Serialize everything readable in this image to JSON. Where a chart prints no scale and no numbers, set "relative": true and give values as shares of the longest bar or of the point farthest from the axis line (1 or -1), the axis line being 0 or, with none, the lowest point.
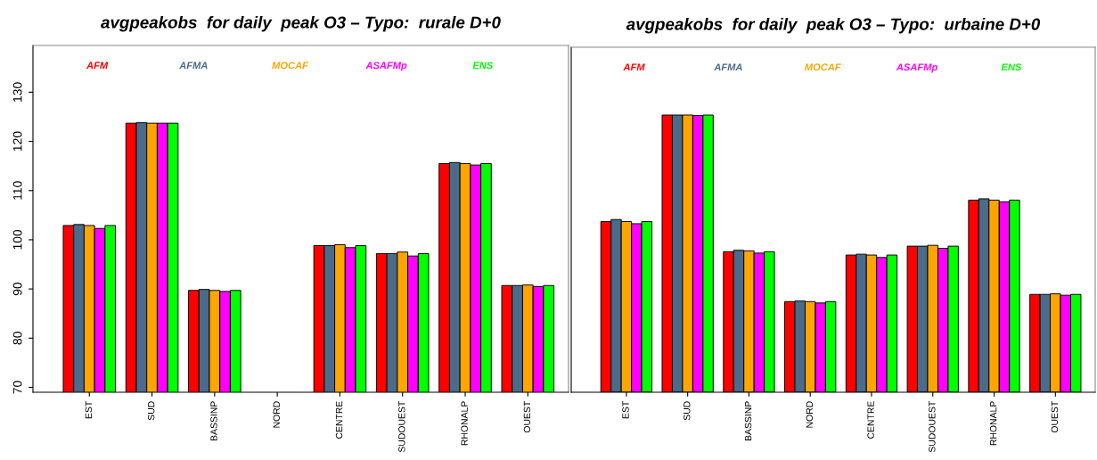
{
  "chart_data": [
    {
      "type": "bar",
      "title": "avgpeakobs  for daily  peak O3 – Typo:  rurale D+0",
      "categories": [
        "EST",
        "SUD",
        "BASSINP",
        "NORD",
        "CENTRE",
        "SUDOUEST",
        "RHONALP",
        "OUEST"
      ],
      "series": [
        {
          "name": "AFM",
          "color": "#ff0000",
          "values": [
            102.9,
            123.7,
            89.7,
            null,
            98.8,
            97.2,
            115.5,
            90.7
          ]
        },
        {
          "name": "AFMA",
          "color": "#4a6b8a",
          "values": [
            103.1,
            123.8,
            89.9,
            null,
            98.8,
            97.2,
            115.7,
            90.7
          ]
        },
        {
          "name": "MOCAF",
          "color": "#ffa500",
          "values": [
            102.9,
            123.7,
            89.7,
            null,
            99.0,
            97.5,
            115.5,
            90.8
          ]
        },
        {
          "name": "ASAFMp",
          "color": "#ff00ff",
          "values": [
            102.3,
            123.7,
            89.5,
            null,
            98.4,
            96.7,
            115.2,
            90.5
          ]
        },
        {
          "name": "ENS",
          "color": "#00ff00",
          "values": [
            102.9,
            123.7,
            89.7,
            null,
            98.8,
            97.2,
            115.5,
            90.7
          ]
        }
      ],
      "ylim": [
        69,
        139.5
      ],
      "yticks": [
        70,
        80,
        90,
        100,
        110,
        120,
        130
      ],
      "legend": "top",
      "grid": false
    },
    {
      "type": "bar",
      "title": "avgpeakobs  for daily  peak O3 – Typo:  urbaine D+0",
      "categories": [
        "EST",
        "SUD",
        "BASSINP",
        "NORD",
        "CENTRE",
        "SUDOUEST",
        "RHONALP",
        "OUEST"
      ],
      "relative": true,
      "series": [
        {
          "name": "AFM",
          "color": "#ff0000",
          "values": [
            0.616,
            1.0,
            0.507,
            0.327,
            0.495,
            0.527,
            0.693,
            0.353
          ]
        },
        {
          "name": "AFMA",
          "color": "#4a6b8a",
          "values": [
            0.623,
            1.0,
            0.512,
            0.329,
            0.498,
            0.527,
            0.698,
            0.353
          ]
        },
        {
          "name": "MOCAF",
          "color": "#ffa500",
          "values": [
            0.616,
            1.0,
            0.51,
            0.327,
            0.495,
            0.53,
            0.693,
            0.355
          ]
        },
        {
          "name": "ASAFMp",
          "color": "#ff00ff",
          "values": [
            0.608,
            0.998,
            0.502,
            0.322,
            0.486,
            0.519,
            0.687,
            0.35
          ]
        },
        {
          "name": "ENS",
          "color": "#00ff00",
          "values": [
            0.616,
            1.0,
            0.507,
            0.327,
            0.495,
            0.527,
            0.693,
            0.353
          ]
        }
      ],
      "legend": "top",
      "grid": false
    }
  ]
}
